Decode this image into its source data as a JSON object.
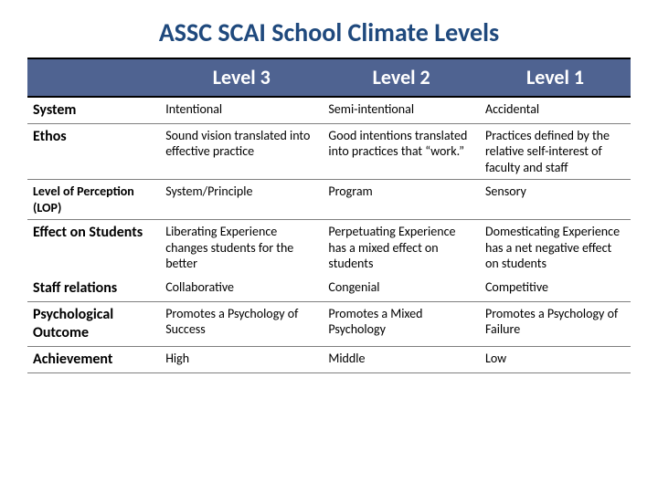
{
  "title": "ASSC SCAI School Climate Levels",
  "colors": {
    "title_color": "#1f497d",
    "header_bg": "#4f6391",
    "header_text": "#ffffff",
    "border": "#7f7f7f",
    "thick_border": "#000000"
  },
  "typography": {
    "title_fontsize": 28,
    "header_fontsize": 22,
    "rowhdr_fontsize": 16,
    "cell_fontsize": 14,
    "font_family": "Calibri"
  },
  "table": {
    "type": "table",
    "columns": [
      "",
      "Level 3",
      "Level 2",
      "Level 1"
    ],
    "col_widths_pct": [
      22,
      27,
      26,
      25
    ],
    "rows": [
      {
        "hdr": "System",
        "cells": [
          "Intentional",
          "Semi-intentional",
          "Accidental"
        ]
      },
      {
        "hdr": "Ethos",
        "cells": [
          "Sound vision translated into effective practice",
          "Good intentions translated into practices that “work.”",
          "Practices defined by the relative self-interest of faculty and staff"
        ]
      },
      {
        "hdr": "Level of Perception (LOP)",
        "cells": [
          "System/Principle",
          "Program",
          "Sensory"
        ]
      },
      {
        "hdr": "Effect on Students",
        "cells": [
          "Liberating Experience changes students for the better",
          "Perpetuating Experience has a mixed effect on students",
          "Domesticating Experience has a net negative effect on students"
        ]
      },
      {
        "hdr": "Staff relations",
        "cells": [
          "Collaborative",
          "Congenial",
          "Competitive"
        ]
      },
      {
        "hdr": "Psychological Outcome",
        "cells": [
          "Promotes a Psychology of Success",
          "Promotes a Mixed Psychology",
          "Promotes a Psychology of Failure"
        ]
      },
      {
        "hdr": "Achievement",
        "cells": [
          "High",
          "Middle",
          "Low"
        ]
      }
    ]
  }
}
